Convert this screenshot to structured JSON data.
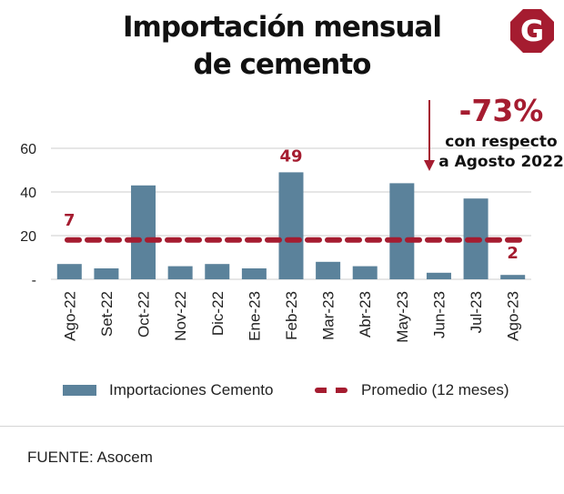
{
  "title_line1": "Importación mensual",
  "title_line2": "de cemento",
  "logo_letter": "G",
  "chart_data": {
    "type": "bar",
    "categories": [
      "Ago-22",
      "Set-22",
      "Oct-22",
      "Nov-22",
      "Dic-22",
      "Ene-23",
      "Feb-23",
      "Mar-23",
      "Abr-23",
      "May-23",
      "Jun-23",
      "Jul-23",
      "Ago-23"
    ],
    "series": [
      {
        "name": "Importaciones Cemento",
        "values": [
          7,
          5,
          43,
          6,
          7,
          5,
          49,
          8,
          6,
          44,
          3,
          37,
          2
        ]
      }
    ],
    "average": {
      "name": "Promedio (12 meses)",
      "value": 18
    },
    "yticks": [
      "60",
      "40",
      "20",
      "-"
    ],
    "ytick_values": [
      60,
      40,
      20,
      0
    ],
    "ylim": [
      0,
      60
    ],
    "data_labels": [
      {
        "category": "Ago-22",
        "text": "7"
      },
      {
        "category": "Feb-23",
        "text": "49"
      },
      {
        "category": "Ago-23",
        "text": "2"
      }
    ],
    "annotation": {
      "value": "-73%",
      "line1": "con respecto",
      "line2": "a Agosto 2022"
    },
    "colors": {
      "bar": "#5b829b",
      "average": "#a51c30",
      "grid": "#cccccc",
      "accent": "#a51c30"
    }
  },
  "legend": {
    "bar_label": "Importaciones Cemento",
    "line_label": "Promedio (12 meses)"
  },
  "source": "FUENTE: Asocem"
}
